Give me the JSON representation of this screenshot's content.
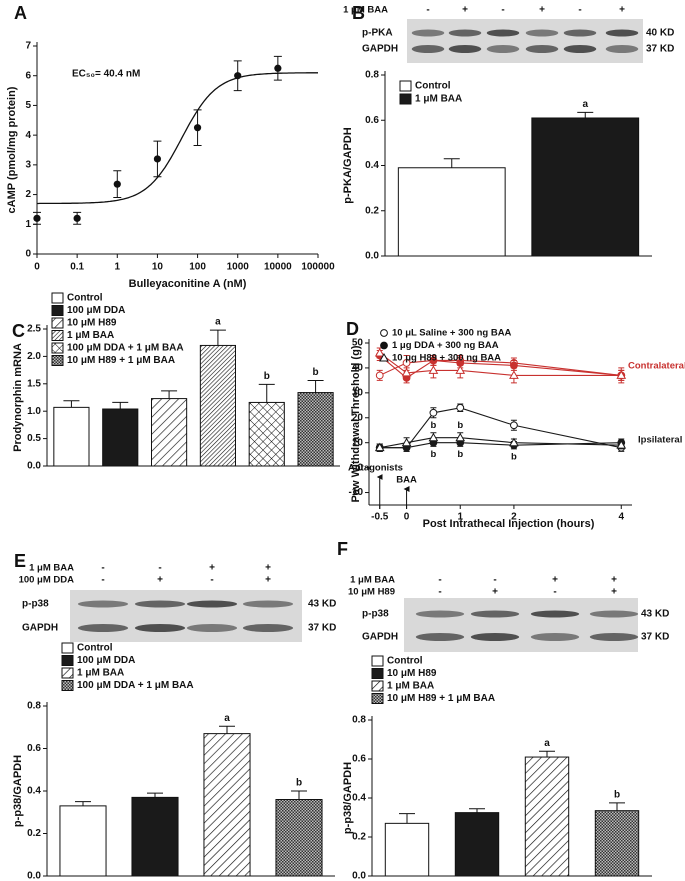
{
  "chart_data": [
    {
      "panel": "A",
      "type": "scatter",
      "xlabel": "Bulleyaconitine A (nM)",
      "ylabel": "cAMP (pmol/mg protein)",
      "annotation": "EC₅₀= 40.4 nM",
      "xscale": "log",
      "x": [
        0,
        0.1,
        1,
        10,
        100,
        1000,
        10000
      ],
      "values": [
        1.2,
        1.2,
        2.35,
        3.2,
        4.25,
        6.0,
        6.25
      ],
      "errors": [
        0.2,
        0.2,
        0.45,
        0.6,
        0.6,
        0.5,
        0.4
      ],
      "fit": {
        "bottom": 1.7,
        "top": 6.1,
        "ec50": 40.4
      },
      "xlim": [
        0,
        100000
      ],
      "xticks": [
        0,
        0.1,
        1,
        10,
        100,
        1000,
        10000,
        100000
      ],
      "ylim": [
        0,
        7
      ],
      "yticks": [
        0,
        1,
        2,
        3,
        4,
        5,
        6,
        7
      ],
      "color": "#111111"
    },
    {
      "panel": "B",
      "type": "bar",
      "ylabel": "p-PKA/GAPDH",
      "categories": [
        "Control",
        "1 μM BAA"
      ],
      "values": [
        0.39,
        0.61
      ],
      "errors": [
        0.04,
        0.025
      ],
      "sig_labels": [
        null,
        "a"
      ],
      "fills": [
        "white",
        "black"
      ],
      "ylim": [
        0,
        0.8
      ],
      "yticks": [
        {
          "value": 0,
          "label": "0.0"
        },
        0.2,
        0.4,
        0.6,
        0.8
      ],
      "blot": {
        "conditions": [
          {
            "label": "1 μM BAA",
            "signs": [
              "-",
              "+",
              "-",
              "+",
              "-",
              "+"
            ]
          }
        ],
        "rows": [
          "p-PKA",
          "GAPDH"
        ],
        "sizes": [
          "40 KD",
          "37 KD"
        ]
      }
    },
    {
      "panel": "C",
      "type": "bar",
      "ylabel": "Prodynorphin mRNA",
      "categories": [
        "Control",
        "100 μM DDA",
        "10 μM H89",
        "1 μM BAA",
        "100 μM DDA + 1 μM BAA",
        "10 μM H89 + 1 μM BAA"
      ],
      "values": [
        1.07,
        1.04,
        1.23,
        2.2,
        1.16,
        1.34
      ],
      "errors": [
        0.12,
        0.12,
        0.14,
        0.28,
        0.33,
        0.22
      ],
      "sig_labels": [
        null,
        null,
        null,
        "a",
        "b",
        "b"
      ],
      "fills": [
        "white",
        "black",
        "hatch",
        "dense",
        "cross",
        "grid"
      ],
      "ylim": [
        0,
        2.5
      ],
      "yticks": [
        {
          "value": 0,
          "label": "0.0"
        },
        0.5,
        {
          "value": 1,
          "label": "1.0"
        },
        1.5,
        {
          "value": 2,
          "label": "2.0"
        },
        2.5
      ]
    },
    {
      "panel": "D",
      "type": "line",
      "xlabel": "Post Intrathecal Injection (hours)",
      "ylabel": "Paw Withdrawal Threshold (g)",
      "x": [
        -0.5,
        0,
        0.5,
        1,
        2,
        4
      ],
      "xlim": [
        -0.7,
        4.2
      ],
      "xticks": [
        -0.5,
        0,
        1,
        2,
        4
      ],
      "ylim": [
        -15,
        50
      ],
      "yticks": [
        -10,
        0,
        10,
        20,
        30,
        40,
        50
      ],
      "groups": {
        "contralateral": {
          "label": "Contralateral",
          "color": "#c8312f"
        },
        "ipsilateral": {
          "label": "Ipsilateral",
          "color": "#1a1a1a"
        }
      },
      "annotations": [
        "Antagonists",
        "BAA"
      ],
      "series": [
        {
          "name": "10 μL Saline + 300 ng BAA",
          "marker": "open-circle",
          "contralateral": {
            "values": [
              37,
              42,
              43,
              43,
              42,
              37
            ],
            "errors": [
              2,
              3,
              2,
              2,
              2,
              2
            ]
          },
          "ipsilateral": {
            "values": [
              8,
              8,
              22,
              24,
              17,
              8
            ],
            "errors": [
              1.5,
              1.5,
              2,
              1.5,
              2,
              1.5
            ]
          }
        },
        {
          "name": "1 μg DDA + 300 ng BAA",
          "marker": "filled-circle",
          "contralateral": {
            "values": [
              45,
              36,
              43,
              42,
              41,
              37
            ],
            "errors": [
              2,
              2,
              2,
              2,
              2,
              2
            ]
          },
          "ipsilateral": {
            "values": [
              8,
              8,
              10,
              10,
              9,
              10
            ],
            "errors": [
              1.5,
              1.5,
              1.5,
              1.5,
              1.5,
              1.5
            ],
            "sig_labels": [
              null,
              null,
              "b",
              "b",
              "b",
              null
            ]
          }
        },
        {
          "name": "10 μg H89 + 300 ng BAA",
          "marker": "open-triangle",
          "contralateral": {
            "values": [
              46,
              38,
              39,
              39,
              37,
              37
            ],
            "errors": [
              2,
              2,
              3,
              3,
              3,
              3
            ]
          },
          "ipsilateral": {
            "values": [
              8,
              10,
              12,
              12,
              10,
              9
            ],
            "errors": [
              1.5,
              2,
              2,
              2,
              1.5,
              1.5
            ],
            "sig_labels": [
              null,
              null,
              "b",
              "b",
              null,
              null
            ]
          }
        }
      ]
    },
    {
      "panel": "E",
      "type": "bar",
      "ylabel": "p-p38/GAPDH",
      "categories": [
        "Control",
        "100 μM DDA",
        "1 μM BAA",
        "100 μM DDA + 1 μM BAA"
      ],
      "values": [
        0.33,
        0.37,
        0.67,
        0.36
      ],
      "errors": [
        0.02,
        0.02,
        0.035,
        0.04
      ],
      "sig_labels": [
        null,
        null,
        "a",
        "b"
      ],
      "fills": [
        "white",
        "black",
        "hatch",
        "grid"
      ],
      "ylim": [
        0,
        0.8
      ],
      "yticks": [
        {
          "value": 0,
          "label": "0.0"
        },
        0.2,
        0.4,
        0.6,
        0.8
      ],
      "blot": {
        "conditions": [
          {
            "label": "1 μM BAA",
            "signs": [
              "-",
              "-",
              "+",
              "+"
            ]
          },
          {
            "label": "100 μM DDA",
            "signs": [
              "-",
              "+",
              "-",
              "+"
            ]
          }
        ],
        "rows": [
          "p-p38",
          "GAPDH"
        ],
        "sizes": [
          "43 KD",
          "37 KD"
        ]
      }
    },
    {
      "panel": "F",
      "type": "bar",
      "ylabel": "p-p38/GAPDH",
      "categories": [
        "Control",
        "10 μM H89",
        "1 μM BAA",
        "10 μM H89 + 1 μM BAA"
      ],
      "values": [
        0.27,
        0.325,
        0.61,
        0.335
      ],
      "errors": [
        0.05,
        0.02,
        0.03,
        0.04
      ],
      "sig_labels": [
        null,
        null,
        "a",
        "b"
      ],
      "fills": [
        "white",
        "black",
        "hatch",
        "grid"
      ],
      "ylim": [
        0,
        0.8
      ],
      "yticks": [
        {
          "value": 0,
          "label": "0.0"
        },
        0.2,
        0.4,
        0.6,
        0.8
      ],
      "blot": {
        "conditions": [
          {
            "label": "1 μM BAA",
            "signs": [
              "-",
              "-",
              "+",
              "+"
            ]
          },
          {
            "label": "10 μM H89",
            "signs": [
              "-",
              "+",
              "-",
              "+"
            ]
          }
        ],
        "rows": [
          "p-p38",
          "GAPDH"
        ],
        "sizes": [
          "43 KD",
          "37 KD"
        ]
      }
    }
  ]
}
